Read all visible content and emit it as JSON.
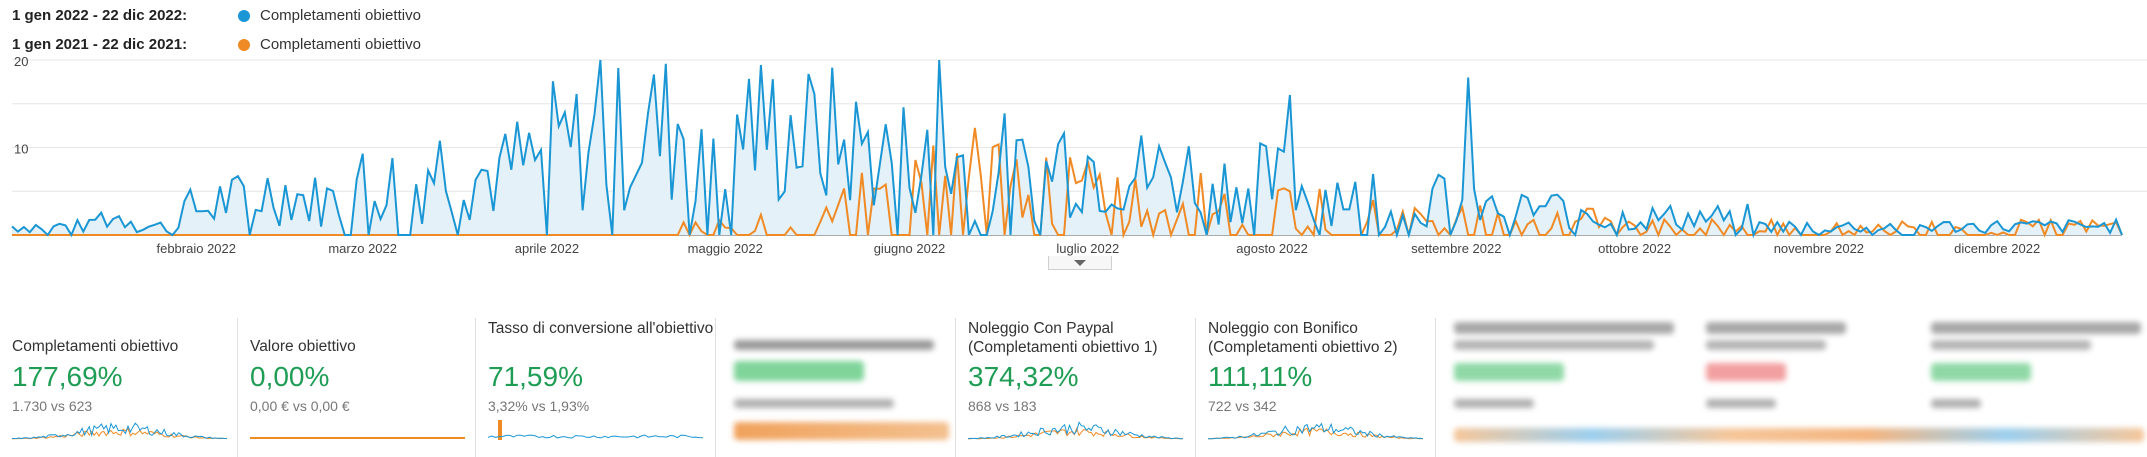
{
  "legend": [
    {
      "period": "1 gen 2022 - 22 dic 2022:",
      "label": "Completamenti obiettivo",
      "color": "#1a96d4"
    },
    {
      "period": "1 gen 2021 - 22 dic 2021:",
      "label": "Completamenti obiettivo",
      "color": "#f08a24"
    }
  ],
  "chart_data": {
    "type": "area",
    "title": "",
    "xlabel": "",
    "ylabel": "",
    "ylim": [
      0,
      20
    ],
    "yticks": [
      "10",
      "20"
    ],
    "grid": true,
    "legend_position": "top-left",
    "x_labels": [
      "febbraio 2022",
      "marzo 2022",
      "aprile 2022",
      "maggio 2022",
      "giugno 2022",
      "luglio 2022",
      "agosto 2022",
      "settembre 2022",
      "ottobre 2022",
      "novembre 2022",
      "dicembre 2022"
    ],
    "series": [
      {
        "name": "1 gen 2022 - 22 dic 2022",
        "color": "#1a96d4",
        "weekly_values": [
          1,
          1,
          2,
          1,
          3,
          4,
          5,
          4,
          6,
          6,
          8,
          7,
          8,
          10,
          11,
          12,
          13,
          13,
          12,
          11,
          10,
          9,
          8,
          8,
          7,
          9,
          8,
          7,
          7,
          6,
          6,
          5,
          5,
          4,
          4,
          3,
          3,
          3,
          2,
          2,
          2,
          2,
          1,
          1,
          1,
          1,
          1,
          1,
          1,
          1,
          1
        ],
        "peaks": [
          {
            "x": "2022-04-10",
            "y": 20
          },
          {
            "x": "2022-06-06",
            "y": 20
          },
          {
            "x": "2022-08-04",
            "y": 16
          },
          {
            "x": "2022-09-03",
            "y": 18
          }
        ]
      },
      {
        "name": "1 gen 2021 - 22 dic 2021",
        "color": "#f08a24",
        "weekly_values": [
          0,
          0,
          0,
          0,
          0,
          0,
          0,
          0,
          0,
          0,
          0,
          0,
          0,
          0,
          0,
          0,
          1,
          1,
          2,
          3,
          4,
          6,
          7,
          7,
          6,
          5,
          5,
          4,
          4,
          4,
          3,
          3,
          3,
          2,
          2,
          2,
          2,
          2,
          2,
          1,
          1,
          1,
          1,
          1,
          1,
          1,
          1,
          1,
          1,
          1,
          1
        ]
      }
    ]
  },
  "metrics": [
    {
      "title": "Completamenti obiettivo",
      "value": "177,69%",
      "compare": "1.730 vs 623"
    },
    {
      "title": "Valore obiettivo",
      "value": "0,00%",
      "compare": "0,00 € vs 0,00 €"
    },
    {
      "title": "Tasso di conversione all'obiettivo",
      "value": "71,59%",
      "compare": "3,32% vs 1,93%"
    },
    {
      "title": "Noleggio Con Paypal (Completamenti obiettivo 1)",
      "value": "374,32%",
      "compare": "868 vs 183"
    },
    {
      "title": "Noleggio con Bonifico (Completamenti obiettivo 2)",
      "value": "111,11%",
      "compare": "722 vs 342"
    }
  ]
}
